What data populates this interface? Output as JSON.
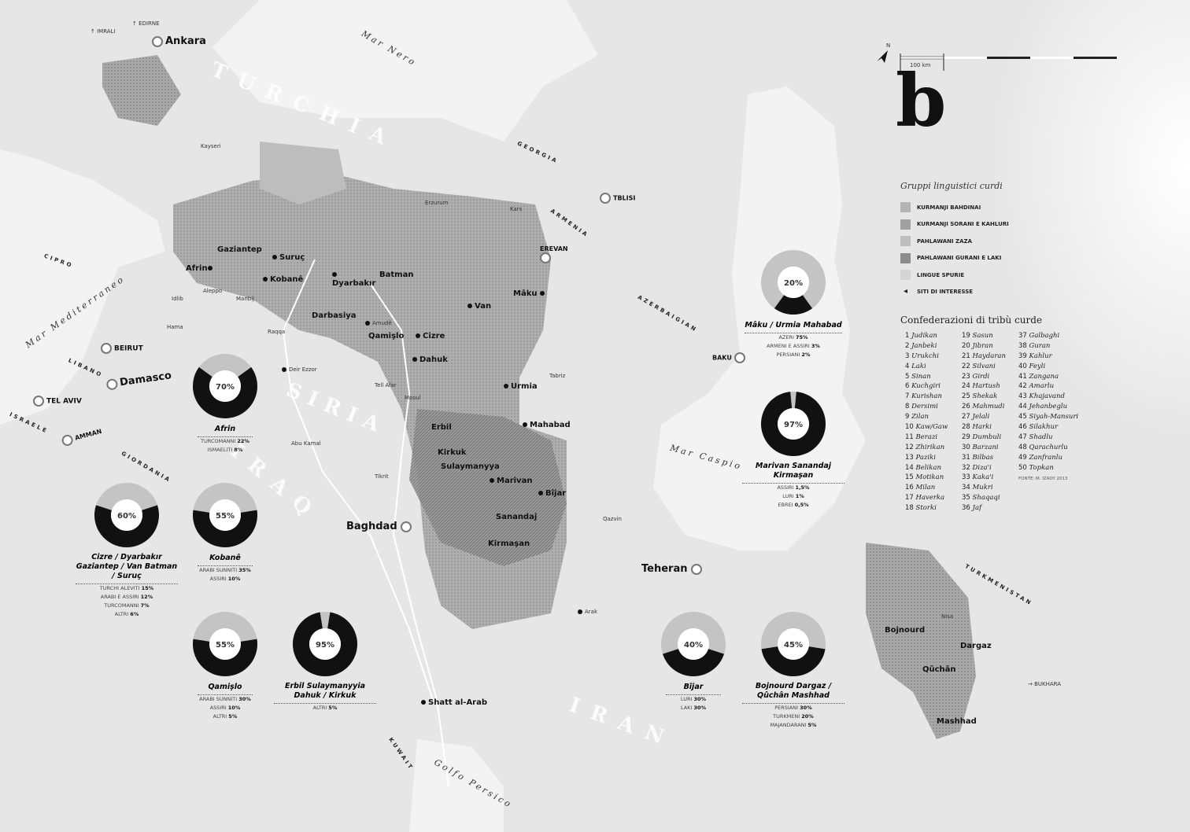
{
  "panel_letter": "b",
  "scale": {
    "label": "100 km"
  },
  "north_arrow": {
    "label": "N",
    "icon": "north-arrow-icon"
  },
  "colors": {
    "land": "#e6e6e6",
    "sea": "#f2f2f2",
    "kurmanji_bahdinai": "#b4b4b4",
    "kurmanji_sorani": "#a0a0a0",
    "zaza": "#bdbdbd",
    "gurani_laki": "#8c8c8c",
    "spurie": "#d4d4d4",
    "donut_kurd": "#111111",
    "donut_other": "#c4c4c4"
  },
  "legend": {
    "title": "Gruppi linguistici curdi",
    "items": [
      {
        "label": "KURMANJI BAHDINAI",
        "color": "#b4b4b4"
      },
      {
        "label": "KURMANJI SORANI E KAHLURI",
        "color": "#a0a0a0"
      },
      {
        "label": "PAHLAWANI ZAZA",
        "color": "#bdbdbd"
      },
      {
        "label": "PAHLAWANI GURANI E LAKI",
        "color": "#8c8c8c"
      },
      {
        "label": "LINGUE SPURIE",
        "color": "#d4d4d4"
      }
    ],
    "sites_label": "SITI DI INTERESSE"
  },
  "confederations": {
    "title": "Confederazioni di tribù curde",
    "tribes": [
      "Judikan",
      "Janbeki",
      "Urukchi",
      "Laki",
      "Sinan",
      "Kuchgiri",
      "Kurishan",
      "Dersimi",
      "Zilan",
      "Kaw/Gaw",
      "Berazi",
      "Zhirikan",
      "Paziki",
      "Belikan",
      "Motikan",
      "Milan",
      "Haverka",
      "Storki",
      "Sasun",
      "Jibran",
      "Haydaran",
      "Silvani",
      "Girdi",
      "Hartush",
      "Shekak",
      "Mahmudi",
      "Jelali",
      "Harki",
      "Dumbuli",
      "Barzani",
      "Bilbas",
      "Diza'i",
      "Kaka'i",
      "Mukri",
      "Shaqaqi",
      "Jaf",
      "Galbaghi",
      "Guran",
      "Kahlur",
      "Feyli",
      "Zangana",
      "Amarlu",
      "Khajavand",
      "Jehanbeglu",
      "Siyah-Mansuri",
      "Silakhur",
      "Shadlu",
      "Qarachurlu",
      "Zanfranlu",
      "Topkan"
    ],
    "source": "FONTE: M. IZADY 2013"
  },
  "chart_data": {
    "type": "pie",
    "description_series": "Kurdish population share per area (black segment)",
    "donuts": [
      {
        "place": "Afrin",
        "kurd_pct": 70,
        "label": "70%",
        "others": [
          {
            "name": "Turcomanni",
            "value": "22%"
          },
          {
            "name": "Ismaeliti",
            "value": "8%"
          }
        ]
      },
      {
        "place": "Cizre / Dyarbakır Gaziantep / Van Batman / Suruç",
        "kurd_pct": 60,
        "label": "60%",
        "others": [
          {
            "name": "Turchi aleviti",
            "value": "15%"
          },
          {
            "name": "Arabi e assiri",
            "value": "12%"
          },
          {
            "name": "Turcomanni",
            "value": "7%"
          },
          {
            "name": "Altri",
            "value": "6%"
          }
        ]
      },
      {
        "place": "Kobanê",
        "kurd_pct": 55,
        "label": "55%",
        "others": [
          {
            "name": "Arabi sunniti",
            "value": "35%"
          },
          {
            "name": "Assiri",
            "value": "10%"
          }
        ]
      },
      {
        "place": "Qamişlo",
        "kurd_pct": 55,
        "label": "55%",
        "others": [
          {
            "name": "Arabi sunniti",
            "value": "30%"
          },
          {
            "name": "Assiri",
            "value": "10%"
          },
          {
            "name": "Altri",
            "value": "5%"
          }
        ]
      },
      {
        "place": "Erbil Sulaymanyyia Dahuk / Kirkuk",
        "kurd_pct": 95,
        "label": "95%",
        "others": [
          {
            "name": "Altri",
            "value": "5%"
          }
        ]
      },
      {
        "place": "Mâku / Urmia Mahabad",
        "kurd_pct": 20,
        "label": "20%",
        "others": [
          {
            "name": "Azeri",
            "value": "75%"
          },
          {
            "name": "Armeni e assiri",
            "value": "3%"
          },
          {
            "name": "Persiani",
            "value": "2%"
          }
        ]
      },
      {
        "place": "Marivan Sanandaj Kirmaşan",
        "kurd_pct": 97,
        "label": "97%",
        "others": [
          {
            "name": "Assiri",
            "value": "1,5%"
          },
          {
            "name": "Luri",
            "value": "1%"
          },
          {
            "name": "Ebrei",
            "value": "0,5%"
          }
        ]
      },
      {
        "place": "Bîjar",
        "kurd_pct": 40,
        "label": "40%",
        "others": [
          {
            "name": "Luri",
            "value": "30%"
          },
          {
            "name": "Laki",
            "value": "30%"
          }
        ]
      },
      {
        "place": "Bojnourd Dargaz / Qûchân Mashhad",
        "kurd_pct": 45,
        "label": "45%",
        "others": [
          {
            "name": "Persiani",
            "value": "30%"
          },
          {
            "name": "Turkmeni",
            "value": "20%"
          },
          {
            "name": "Majandarani",
            "value": "5%"
          }
        ]
      }
    ]
  },
  "map": {
    "countries": [
      "TURCHIA",
      "SIRIA",
      "IRAQ",
      "IRAN",
      "GEORGIA",
      "ARMENIA",
      "AZERBAIGIAN",
      "TURKMENISTAN",
      "GIORDANIA",
      "LIBANO",
      "ISRAELE",
      "KUWAIT",
      "CIPRO"
    ],
    "seas": [
      "Mar Nero",
      "Mar Mediterraneo",
      "Mar Caspio",
      "Golfo Persico"
    ],
    "capitals": [
      "Ankara",
      "Damasco",
      "Baghdad",
      "Teheran",
      "BEIRUT",
      "TEL AVIV",
      "AMMAN",
      "TBLISI",
      "EREVAN",
      "BAKU"
    ],
    "cities": [
      "Gaziantep",
      "Suruç",
      "Afrin",
      "Kobanê",
      "Dyarbakır",
      "Batman",
      "Van",
      "Mâku",
      "Darbasiya",
      "Amudê",
      "Qamişlo",
      "Cizre",
      "Dahuk",
      "Urmia",
      "Mahabad",
      "Erbil",
      "Kirkuk",
      "Sulaymanyya",
      "Marivan",
      "Bîjar",
      "Sanandaj",
      "Kirmaşan",
      "Bojnourd",
      "Qûchân",
      "Dargaz",
      "Mashhad",
      "Shatt al-Arab"
    ],
    "towns": [
      "Kayseri",
      "Idlib",
      "Hama",
      "Aleppo",
      "Manbij",
      "Raqqa",
      "Deir Ezzor",
      "Abu Kamal",
      "Tikrit",
      "Mosul",
      "Tell Afar",
      "Erzurum",
      "Kars",
      "Tabriz",
      "Qazvin",
      "Arak",
      "Nisa"
    ],
    "arrows": [
      "IMRALI",
      "EDIRNE",
      "BUKHARA"
    ]
  }
}
